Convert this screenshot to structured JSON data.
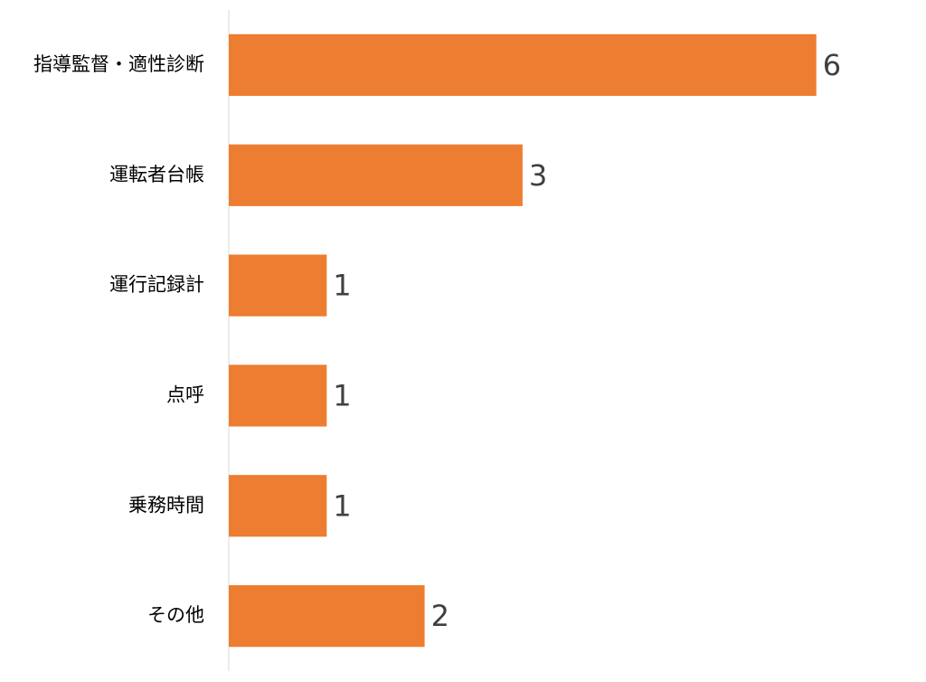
{
  "chart_data": {
    "type": "hbar",
    "categories": [
      "指導監督・適性診断",
      "運転者台帳",
      "運行記録計",
      "点呼",
      "乗務時間",
      "その他"
    ],
    "values": [
      6,
      3,
      1,
      1,
      1,
      2
    ],
    "color": "#ed7d31",
    "xlim": [
      0,
      7
    ]
  }
}
